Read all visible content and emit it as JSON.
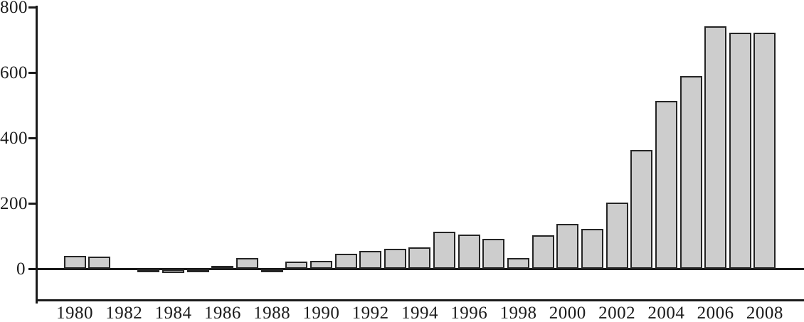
{
  "chart_data": {
    "type": "bar",
    "title": "",
    "subtitle": "",
    "xlabel": "",
    "ylabel": "",
    "legend": "none",
    "grid": false,
    "categories": [
      1980,
      1981,
      1982,
      1983,
      1984,
      1985,
      1986,
      1987,
      1988,
      1989,
      1990,
      1991,
      1992,
      1993,
      1994,
      1995,
      1996,
      1997,
      1998,
      1999,
      2000,
      2001,
      2002,
      2003,
      2004,
      2005,
      2006,
      2007,
      2008
    ],
    "values": [
      40,
      36,
      0,
      -5,
      -10,
      -8,
      8,
      33,
      -5,
      22,
      23,
      45,
      55,
      60,
      66,
      112,
      105,
      92,
      32,
      103,
      137,
      122,
      202,
      363,
      512,
      590,
      742,
      722,
      722
    ],
    "x_tick_labels": [
      "1980",
      "1982",
      "1984",
      "1986",
      "1988",
      "1990",
      "1992",
      "1994",
      "1996",
      "1998",
      "2000",
      "2002",
      "2004",
      "2006",
      "2008"
    ],
    "y_tick_labels": [
      "800",
      "600",
      "400",
      "200",
      "0"
    ],
    "y_ticks": [
      800,
      600,
      400,
      200,
      0
    ],
    "ylim": [
      -95,
      800
    ],
    "colors": {
      "bar_fill": "#cdcdcd",
      "bar_border": "#252525",
      "axis": "#1a1a1a",
      "text": "#1b1b1b",
      "background": "#ffffff"
    }
  }
}
